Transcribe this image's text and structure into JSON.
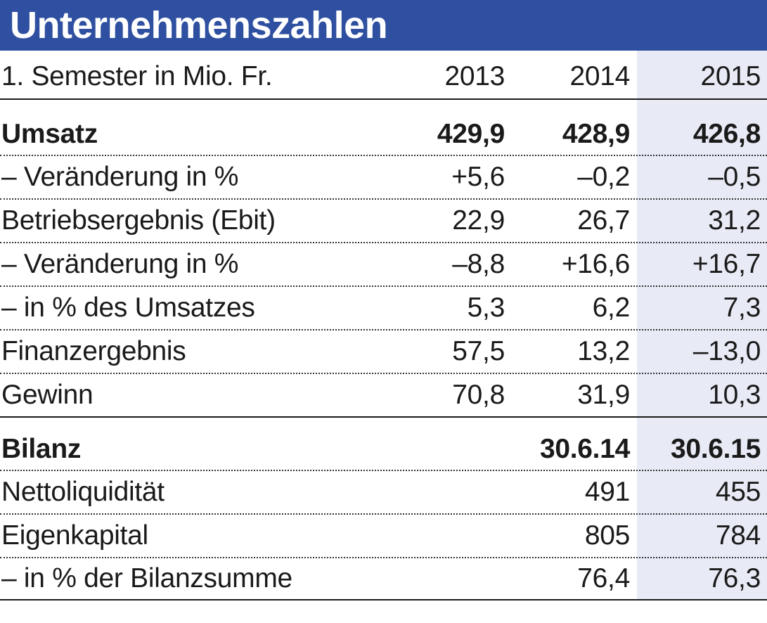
{
  "title": "Unternehmenszahlen",
  "header": {
    "label": "1. Semester in Mio. Fr.",
    "col_2013": "2013",
    "col_2014": "2014",
    "col_2015": "2015"
  },
  "rows": [
    {
      "label": "Umsatz",
      "v2013": "429,9",
      "v2014": "428,9",
      "v2015": "426,8"
    },
    {
      "label": "– Veränderung in %",
      "v2013": "+5,6",
      "v2014": "–0,2",
      "v2015": "–0,5"
    },
    {
      "label": "Betriebsergebnis (Ebit)",
      "v2013": "22,9",
      "v2014": "26,7",
      "v2015": "31,2"
    },
    {
      "label": "– Veränderung in %",
      "v2013": "–8,8",
      "v2014": "+16,6",
      "v2015": "+16,7"
    },
    {
      "label": "– in % des Umsatzes",
      "v2013": "5,3",
      "v2014": "6,2",
      "v2015": "7,3"
    },
    {
      "label": "Finanzergebnis",
      "v2013": "57,5",
      "v2014": "13,2",
      "v2015": "–13,0"
    },
    {
      "label": "Gewinn",
      "v2013": "70,8",
      "v2014": "31,9",
      "v2015": "10,3"
    }
  ],
  "bilanz": {
    "label": "Bilanz",
    "date_2014": "30.6.14",
    "date_2015": "30.6.15",
    "rows": [
      {
        "label": "Nettoliquidität",
        "v2014": "491",
        "v2015": "455"
      },
      {
        "label": "Eigenkapital",
        "v2014": "805",
        "v2015": "784"
      },
      {
        "label": "– in % der Bilanzsumme",
        "v2014": "76,4",
        "v2015": "76,3"
      }
    ]
  },
  "colors": {
    "title_bar": "#2f50a0",
    "highlight_column": "#e8eaf5",
    "text": "#1a1a1a"
  }
}
